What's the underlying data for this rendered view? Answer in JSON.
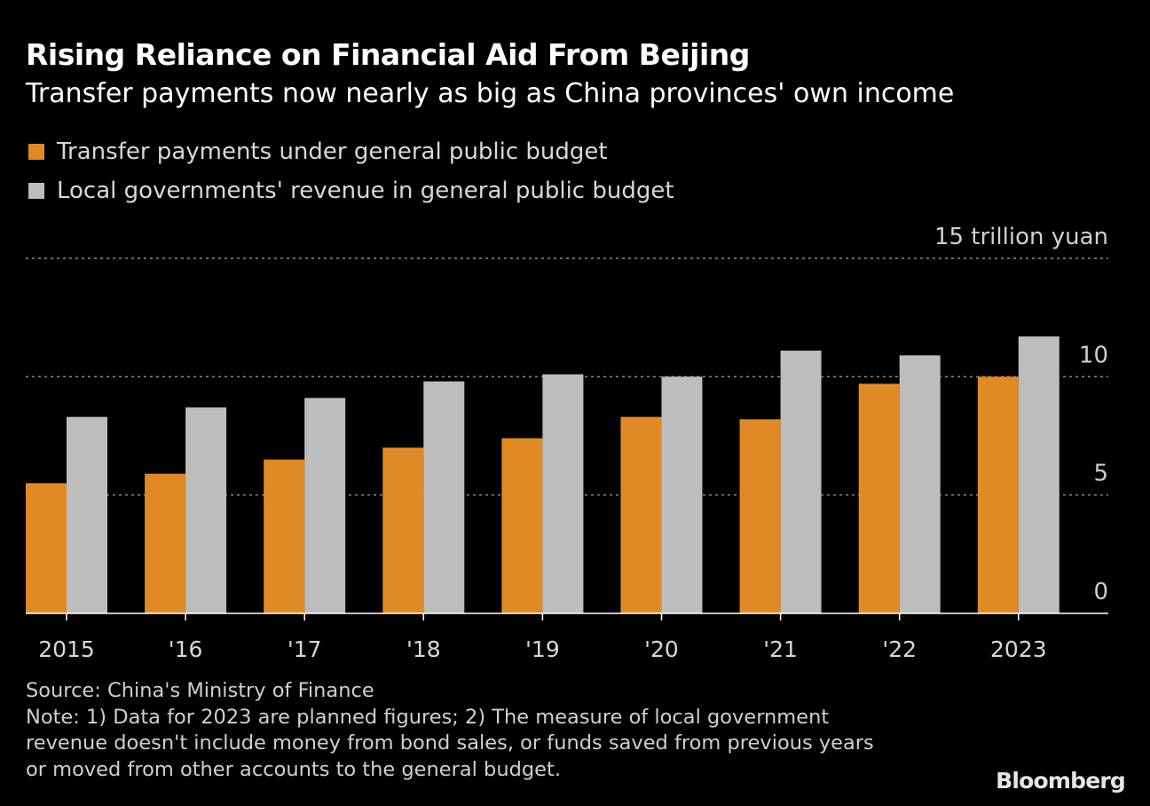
{
  "title": "Rising Reliance on Financial Aid From Beijing",
  "subtitle": "Transfer payments now nearly as big as China provinces' own income",
  "legend": [
    {
      "label": "Transfer payments under general public budget",
      "color": "#e08a26"
    },
    {
      "label": "Local governments' revenue in general public budget",
      "color": "#bdbdbd"
    }
  ],
  "axis": {
    "unit_label": "15 trillion yuan",
    "ticks": [
      {
        "value": 10,
        "label": "10"
      },
      {
        "value": 5,
        "label": "5"
      },
      {
        "value": 0,
        "label": "0"
      }
    ]
  },
  "chart_data": {
    "type": "bar",
    "categories": [
      "2015",
      "'16",
      "'17",
      "'18",
      "'19",
      "'20",
      "'21",
      "'22",
      "2023"
    ],
    "series": [
      {
        "name": "Transfer payments under general public budget",
        "color": "#e08a26",
        "values": [
          5.5,
          5.9,
          6.5,
          7.0,
          7.4,
          8.3,
          8.2,
          9.7,
          10.0
        ]
      },
      {
        "name": "Local governments' revenue in general public budget",
        "color": "#bdbdbd",
        "values": [
          8.3,
          8.7,
          9.1,
          9.8,
          10.1,
          10.0,
          11.1,
          10.9,
          11.7
        ]
      }
    ],
    "ylim": [
      0,
      15
    ],
    "ylabel": "15 trillion yuan",
    "grid": true,
    "legend_position": "top-left"
  },
  "footer": {
    "source": "Source: China's Ministry of Finance",
    "note_lines": [
      "Note: 1) Data for 2023 are planned figures; 2) The measure of local government",
      "revenue doesn't include money from bond sales, or funds saved from previous years",
      "or moved from other accounts to the general budget."
    ]
  },
  "brand": "Bloomberg"
}
